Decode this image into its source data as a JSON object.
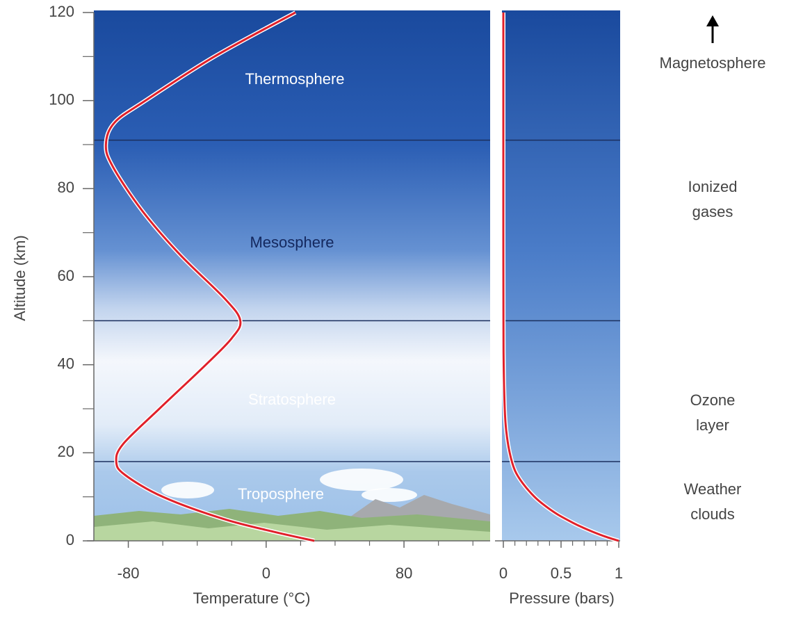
{
  "chart_data": [
    {
      "type": "line",
      "y_label": "Altitude (km)",
      "x_label": "Temperature (°C)",
      "x": [
        28,
        5,
        -25,
        -60,
        -82,
        -87,
        -83,
        -62,
        -35,
        -20,
        -15,
        -24,
        -50,
        -72,
        -89,
        -93,
        -88,
        -70,
        -30,
        17
      ],
      "y": [
        0,
        2,
        5,
        10,
        15,
        18,
        22,
        30,
        40,
        46,
        50,
        55,
        65,
        75,
        85,
        90,
        95,
        100,
        110,
        120
      ],
      "color": "#e0202a",
      "xlim": [
        -100,
        130
      ],
      "ylim": [
        0,
        120
      ],
      "xticks": [
        -80,
        0,
        80
      ],
      "xminorticks": [
        -60,
        -40,
        -20,
        20,
        40,
        60,
        100,
        120
      ],
      "yticks": [
        0,
        20,
        40,
        60,
        80,
        100,
        120
      ],
      "yminorticks": [
        10,
        30,
        50,
        70,
        90,
        110
      ],
      "layer_boundaries": [
        18,
        50,
        91
      ],
      "layers": [
        "Thermosphere",
        "Mesosphere",
        "Stratosphere",
        "Troposphere"
      ]
    },
    {
      "type": "line",
      "x_label": "Pressure (bars)",
      "x": [
        1.0,
        0.88,
        0.78,
        0.69,
        0.61,
        0.47,
        0.36,
        0.27,
        0.17,
        0.1,
        0.055,
        0.025,
        0.012,
        0.003,
        0.001,
        0,
        0,
        0
      ],
      "y": [
        0,
        1,
        2,
        3,
        4,
        6,
        8,
        10,
        13,
        16,
        20,
        25,
        30,
        40,
        50,
        70,
        90,
        120
      ],
      "color": "#e0202a",
      "xlim": [
        0,
        1
      ],
      "ylim": [
        0,
        120
      ],
      "xticks": [
        0,
        0.5,
        1
      ],
      "xminorticks": [
        0.1,
        0.2,
        0.3,
        0.4,
        0.6,
        0.7,
        0.8,
        0.9
      ],
      "layer_boundaries": [
        18,
        50,
        91
      ]
    }
  ],
  "annotations": [
    {
      "lines": [
        "Magnetosphere"
      ],
      "arrow": "up"
    },
    {
      "lines": [
        "Ionized",
        "gases"
      ]
    },
    {
      "lines": [
        "Ozone",
        "layer"
      ]
    },
    {
      "lines": [
        "Weather",
        "clouds"
      ]
    }
  ]
}
